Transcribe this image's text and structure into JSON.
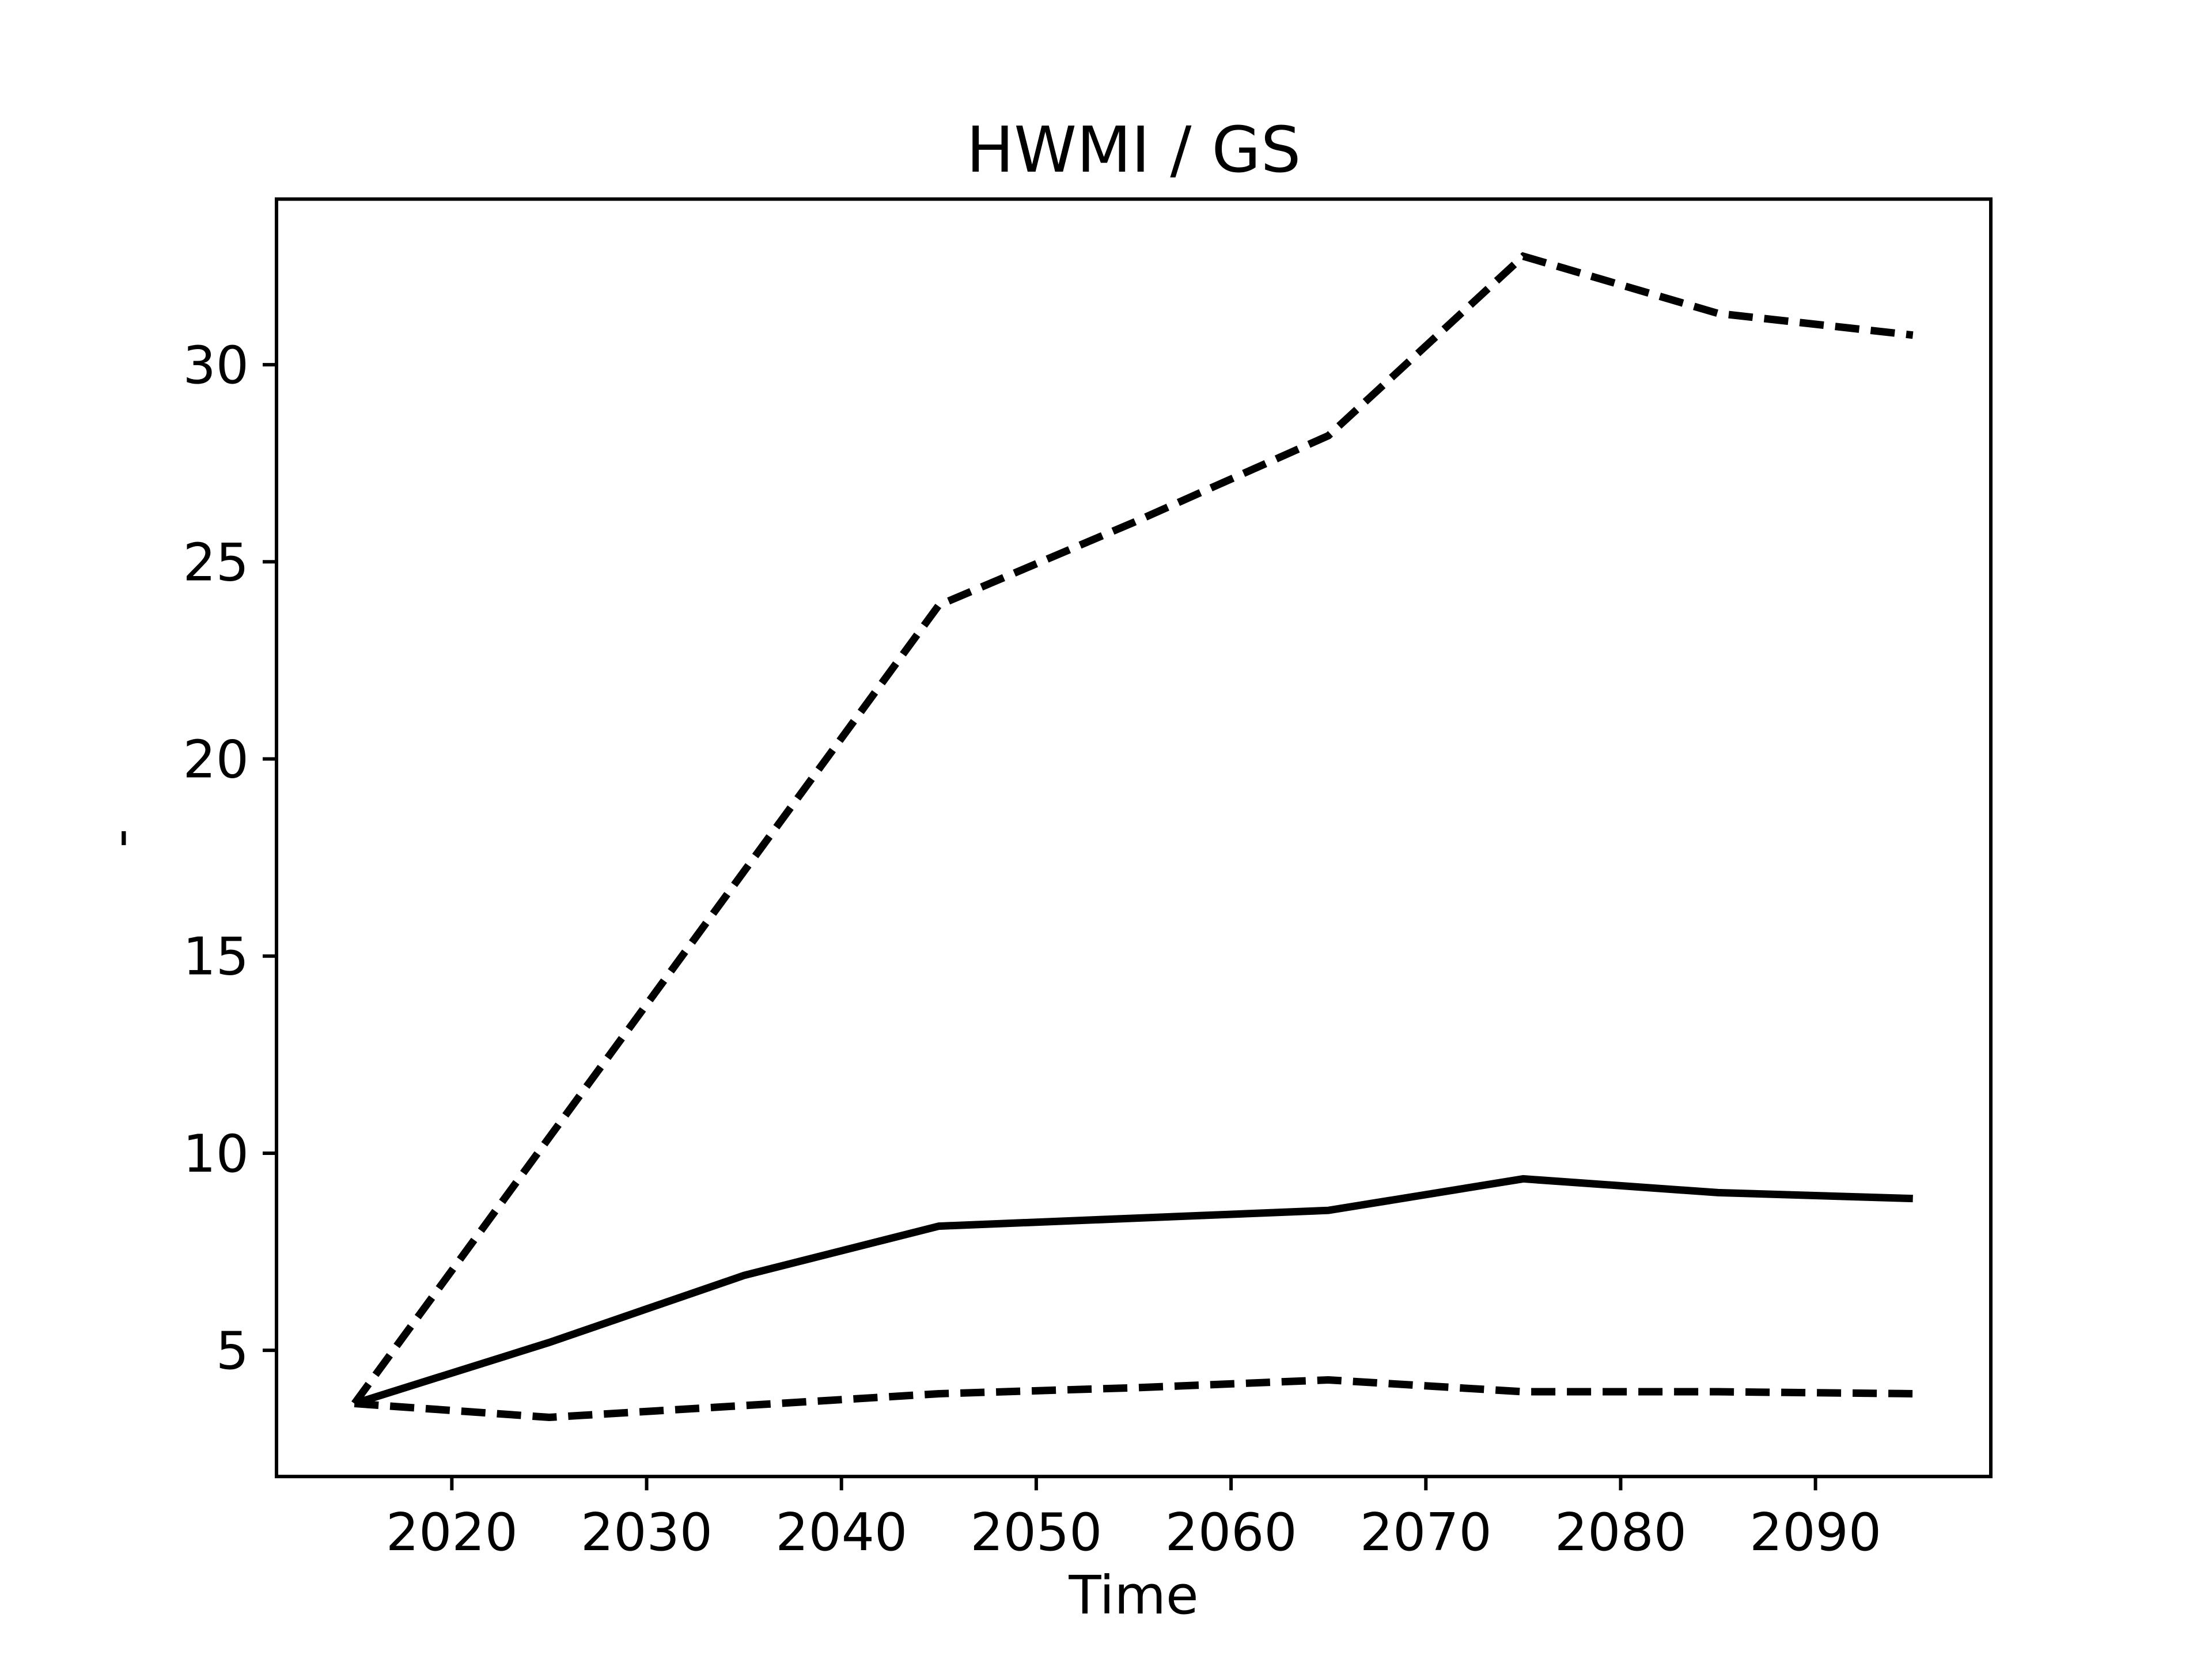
{
  "figure": {
    "background": "#ffffff",
    "line_color": "#000000"
  },
  "chart_data": {
    "type": "line",
    "title": "HWMI / GS",
    "xlabel": "Time",
    "ylabel": "-",
    "x": [
      2015,
      2025,
      2035,
      2045,
      2055,
      2065,
      2075,
      2085,
      2095
    ],
    "series": [
      {
        "name": "upper-dashed",
        "style": "dashed",
        "values": [
          3.65,
          10.4,
          17.15,
          23.9,
          26.0,
          28.2,
          32.75,
          31.3,
          30.75
        ]
      },
      {
        "name": "middle-solid",
        "style": "solid",
        "values": [
          3.65,
          5.2,
          6.9,
          8.15,
          8.35,
          8.55,
          9.35,
          9.0,
          8.85
        ]
      },
      {
        "name": "lower-dashed",
        "style": "dashed",
        "values": [
          3.65,
          3.3,
          3.6,
          3.9,
          4.05,
          4.25,
          3.95,
          3.95,
          3.9
        ]
      }
    ],
    "xlim": [
      2011,
      2099
    ],
    "ylim": [
      1.8,
      34.2
    ],
    "xticks": [
      2020,
      2030,
      2040,
      2050,
      2060,
      2070,
      2080,
      2090
    ],
    "yticks": [
      5,
      10,
      15,
      20,
      25,
      30
    ],
    "grid": false,
    "legend": null
  }
}
